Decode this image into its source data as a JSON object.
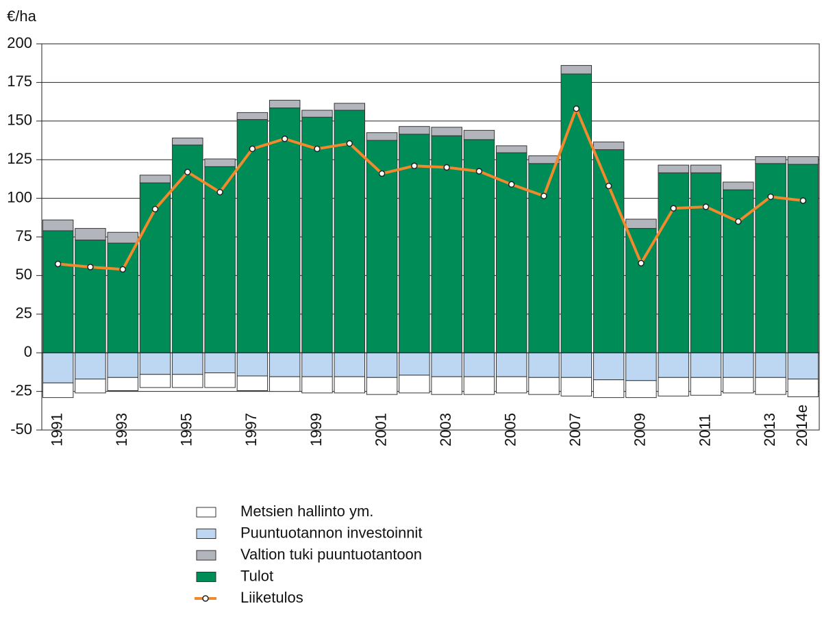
{
  "chart_data": {
    "type": "bar",
    "ylabel": "€/ha",
    "categories": [
      "1991",
      null,
      "1993",
      null,
      "1995",
      null,
      "1997",
      null,
      "1999",
      null,
      "2001",
      null,
      "2003",
      null,
      "2005",
      null,
      "2007",
      null,
      "2009",
      null,
      "2011",
      null,
      "2013",
      "2014e"
    ],
    "ylim": [
      -50,
      200
    ],
    "yticks": [
      -50,
      -25,
      0,
      25,
      50,
      75,
      100,
      125,
      150,
      175,
      200
    ],
    "grid": true,
    "series": [
      {
        "name": "Metsien hallinto ym.",
        "color": "#ffffff",
        "values": [
          -9.5,
          -9,
          -8.5,
          -8.5,
          -8.5,
          -9.5,
          -9.5,
          -9.5,
          -10.5,
          -10.5,
          -11,
          -11.5,
          -11.5,
          -11.5,
          -10.5,
          -11,
          -12,
          -11.5,
          -11,
          -12,
          -11.5,
          -10,
          -11,
          -11.5
        ]
      },
      {
        "name": "Puuntuotannon investoinnit",
        "color": "#bdd7f2",
        "values": [
          -19.5,
          -17,
          -16,
          -14,
          -14,
          -13,
          -15,
          -15.5,
          -15.5,
          -15.5,
          -16,
          -14.5,
          -15.5,
          -15.5,
          -15.5,
          -16,
          -16,
          -17.5,
          -18,
          -16,
          -16,
          -16,
          -16,
          -17
        ]
      },
      {
        "name": "Valtion tuki puuntuotantoon",
        "color": "#b3b5bd",
        "values": [
          7,
          7.5,
          7,
          5,
          4.5,
          5,
          4.5,
          5,
          4.5,
          4.5,
          5,
          5,
          5.5,
          6,
          4.5,
          5,
          5.5,
          5,
          6,
          5,
          5,
          5,
          4.5,
          5
        ]
      },
      {
        "name": "Tulot",
        "color": "#008c57",
        "values": [
          79,
          73,
          71,
          110,
          134.5,
          120.5,
          151,
          158.5,
          152.5,
          157,
          137.5,
          141.5,
          140.5,
          138,
          129.5,
          122.5,
          180.5,
          131.5,
          80.5,
          116.5,
          116.5,
          105.5,
          122.5,
          122
        ]
      },
      {
        "name": "Liiketulos",
        "type": "line",
        "color": "#f08a2c",
        "values": [
          57.5,
          55.5,
          54,
          93,
          117,
          104,
          132,
          138.5,
          132,
          135.5,
          116,
          121,
          120,
          117.5,
          109,
          101.5,
          158,
          108,
          58,
          93.5,
          94.5,
          85,
          101,
          98.5
        ]
      }
    ]
  }
}
